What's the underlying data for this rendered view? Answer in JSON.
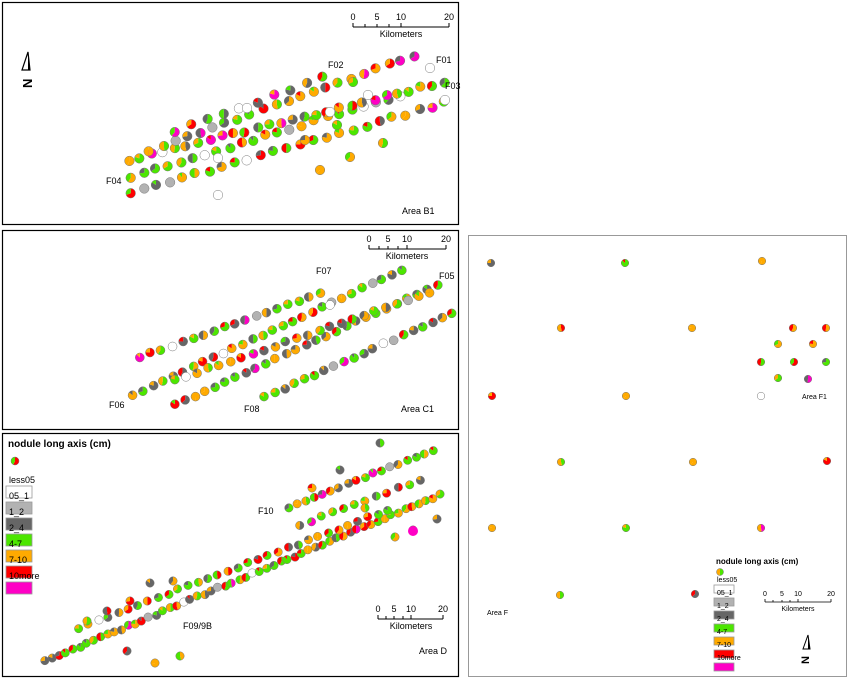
{
  "areas": {
    "b1": {
      "name": "Area B1",
      "lines": [
        "F01",
        "F02",
        "F03",
        "F04"
      ],
      "scale": {
        "ticks": [
          "0",
          "5",
          "10",
          "20"
        ],
        "unit": "Kilometers"
      }
    },
    "c1": {
      "name": "Area C1",
      "lines": [
        "F05",
        "F06",
        "F07",
        "F08"
      ],
      "scale": {
        "ticks": [
          "0",
          "5",
          "10",
          "20"
        ],
        "unit": "Kilometers"
      }
    },
    "d": {
      "name": "Area D",
      "lines": [
        "F09/9B",
        "F10"
      ],
      "scale": {
        "ticks": [
          "0",
          "5",
          "10",
          "20"
        ],
        "unit": "Kilometers"
      }
    },
    "f": {
      "name": "Area F",
      "inset": "Area F1",
      "scale": {
        "ticks": [
          "0",
          "5",
          "10",
          "20"
        ],
        "unit": "Kilometers"
      }
    }
  },
  "north_arrow": {
    "label": "N"
  },
  "legend": {
    "title": "nodule long axis (cm)",
    "classes": [
      {
        "label": "less05",
        "color": "#ffffff"
      },
      {
        "label": "05_1",
        "color": "#b2b2b2"
      },
      {
        "label": "1_2",
        "color": "#666666"
      },
      {
        "label": "2_4",
        "color": "#4ce600"
      },
      {
        "label": "4-7",
        "color": "#ffaa00"
      },
      {
        "label": "7-10",
        "color": "#ff0000"
      },
      {
        "label": "10more",
        "color": "#ff00c5"
      }
    ]
  },
  "colors": {
    "frame": "#000000",
    "outline": "#777777",
    "text": "#000000"
  }
}
